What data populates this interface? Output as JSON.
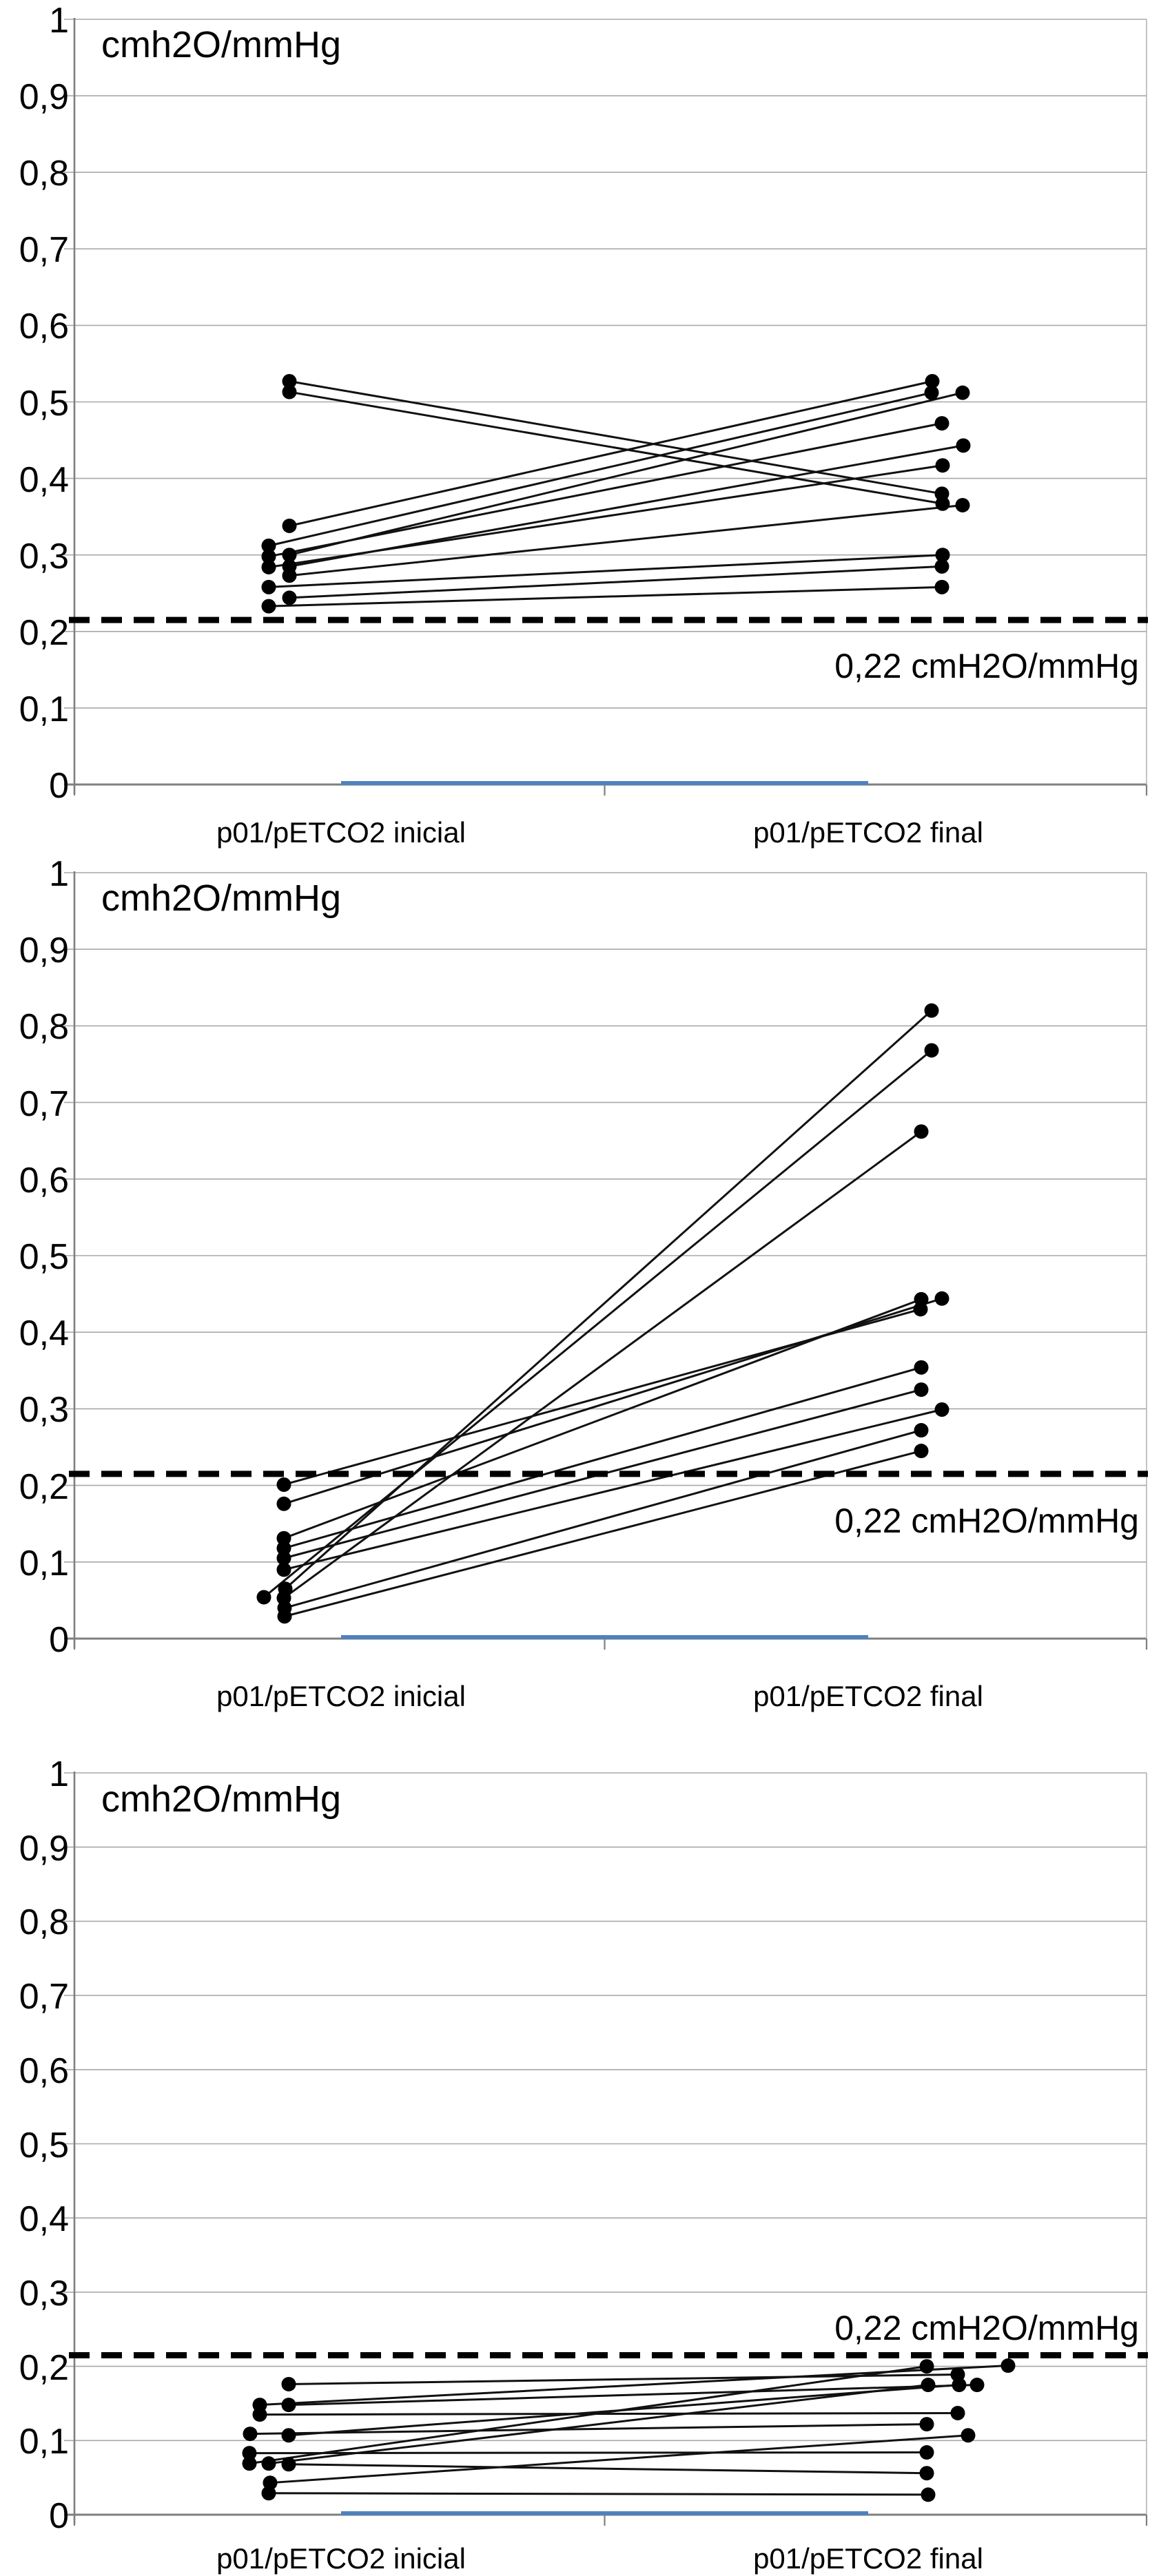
{
  "page": {
    "background": "#ffffff",
    "description": "Three stacked paired-point (slope) charts comparing p01/pETCO2 initial vs final, each with a dashed reference line at 0,22 cmH2O/mmHg"
  },
  "chart_data": [
    {
      "type": "line",
      "subtype": "paired-slope-chart",
      "title": "cmh2O/mmHg",
      "x_categories": [
        "p01/pETCO2 inicial",
        "p01/pETCO2 final"
      ],
      "ylim": [
        0,
        1
      ],
      "ytick_values": [
        0,
        0.1,
        0.2,
        0.3,
        0.4,
        0.5,
        0.6,
        0.7,
        0.8,
        0.9,
        1
      ],
      "ytick_labels": [
        "0",
        "0,1",
        "0,2",
        "0,3",
        "0,4",
        "0,5",
        "0,6",
        "0,7",
        "0,8",
        "0,9",
        "1"
      ],
      "grid": "horizontal",
      "legend": "none",
      "point_color": "#000000",
      "threshold": {
        "value": 0.215,
        "label": "0,22 cmH2O/mmHg",
        "label_position": "below-line-right",
        "style": "dashed-black"
      },
      "baseline_marker": {
        "value": 0,
        "color": "#4F81BD"
      },
      "pairs": [
        {
          "initial": 0.527,
          "final": 0.38,
          "dxi": 8,
          "dxf": 0
        },
        {
          "initial": 0.513,
          "final": 0.367,
          "dxi": 8,
          "dxf": 1
        },
        {
          "initial": 0.338,
          "final": 0.527,
          "dxi": 8,
          "dxf": -14
        },
        {
          "initial": 0.312,
          "final": 0.512,
          "dxi": -22,
          "dxf": -15
        },
        {
          "initial": 0.3,
          "final": 0.512,
          "dxi": 8,
          "dxf": 30
        },
        {
          "initial": 0.298,
          "final": 0.472,
          "dxi": -22,
          "dxf": 0
        },
        {
          "initial": 0.285,
          "final": 0.443,
          "dxi": 8,
          "dxf": 31
        },
        {
          "initial": 0.284,
          "final": 0.417,
          "dxi": -22,
          "dxf": 1
        },
        {
          "initial": 0.273,
          "final": 0.365,
          "dxi": 8,
          "dxf": 30
        },
        {
          "initial": 0.258,
          "final": 0.3,
          "dxi": -22,
          "dxf": 1
        },
        {
          "initial": 0.244,
          "final": 0.285,
          "dxi": 8,
          "dxf": 0
        },
        {
          "initial": 0.233,
          "final": 0.258,
          "dxi": -22,
          "dxf": 0
        }
      ]
    },
    {
      "type": "line",
      "subtype": "paired-slope-chart",
      "title": "cmh2O/mmHg",
      "x_categories": [
        "p01/pETCO2 inicial",
        "p01/pETCO2 final"
      ],
      "ylim": [
        0,
        1
      ],
      "ytick_values": [
        0,
        0.1,
        0.2,
        0.3,
        0.4,
        0.5,
        0.6,
        0.7,
        0.8,
        0.9,
        1
      ],
      "ytick_labels": [
        "0",
        "0,1",
        "0,2",
        "0,3",
        "0,4",
        "0,5",
        "0,6",
        "0,7",
        "0,8",
        "0,9",
        "1"
      ],
      "grid": "horizontal",
      "legend": "none",
      "point_color": "#000000",
      "threshold": {
        "value": 0.215,
        "label": "0,22 cmH2O/mmHg",
        "label_position": "below-line-right",
        "style": "dashed-black"
      },
      "baseline_marker": {
        "value": 0,
        "color": "#4F81BD"
      },
      "pairs": [
        {
          "initial": 0.201,
          "final": 0.43,
          "dxi": 0,
          "dxf": -31
        },
        {
          "initial": 0.176,
          "final": 0.444,
          "dxi": 0,
          "dxf": 0
        },
        {
          "initial": 0.131,
          "final": 0.443,
          "dxi": 0,
          "dxf": -30
        },
        {
          "initial": 0.118,
          "final": 0.354,
          "dxi": 0,
          "dxf": -30
        },
        {
          "initial": 0.105,
          "final": 0.325,
          "dxi": 0,
          "dxf": -30
        },
        {
          "initial": 0.09,
          "final": 0.299,
          "dxi": 0,
          "dxf": 0
        },
        {
          "initial": 0.065,
          "final": 0.82,
          "dxi": 2,
          "dxf": -15
        },
        {
          "initial": 0.054,
          "final": 0.768,
          "dxi": -29,
          "dxf": -15
        },
        {
          "initial": 0.053,
          "final": 0.662,
          "dxi": 0,
          "dxf": -30
        },
        {
          "initial": 0.04,
          "final": 0.272,
          "dxi": 1,
          "dxf": -30
        },
        {
          "initial": 0.029,
          "final": 0.245,
          "dxi": 1,
          "dxf": -30
        }
      ]
    },
    {
      "type": "line",
      "subtype": "paired-slope-chart",
      "title": "cmh2O/mmHg",
      "x_categories": [
        "p01/pETCO2 inicial",
        "p01/pETCO2 final"
      ],
      "ylim": [
        0,
        1
      ],
      "ytick_values": [
        0,
        0.1,
        0.2,
        0.3,
        0.4,
        0.5,
        0.6,
        0.7,
        0.8,
        0.9,
        1
      ],
      "ytick_labels": [
        "0",
        "0,1",
        "0,2",
        "0,3",
        "0,4",
        "0,5",
        "0,6",
        "0,7",
        "0,8",
        "0,9",
        "1"
      ],
      "grid": "horizontal",
      "legend": "none",
      "point_color": "#000000",
      "threshold": {
        "value": 0.215,
        "label": "0,22 cmH2O/mmHg",
        "label_position": "above-line-right",
        "style": "dashed-black"
      },
      "baseline_marker": {
        "value": 0,
        "color": "#4F81BD"
      },
      "pairs": [
        {
          "initial": 0.176,
          "final": 0.189,
          "dxi": 7,
          "dxf": 23
        },
        {
          "initial": 0.148,
          "final": 0.201,
          "dxi": -35,
          "dxf": 96
        },
        {
          "initial": 0.148,
          "final": 0.175,
          "dxi": 7,
          "dxf": 51
        },
        {
          "initial": 0.135,
          "final": 0.137,
          "dxi": -35,
          "dxf": 23
        },
        {
          "initial": 0.109,
          "final": 0.122,
          "dxi": -49,
          "dxf": -22
        },
        {
          "initial": 0.107,
          "final": 0.175,
          "dxi": 7,
          "dxf": 25
        },
        {
          "initial": 0.083,
          "final": 0.084,
          "dxi": -50,
          "dxf": -22
        },
        {
          "initial": 0.069,
          "final": 0.2,
          "dxi": -50,
          "dxf": -22
        },
        {
          "initial": 0.069,
          "final": 0.175,
          "dxi": -22,
          "dxf": -20
        },
        {
          "initial": 0.068,
          "final": 0.056,
          "dxi": 7,
          "dxf": -22
        },
        {
          "initial": 0.043,
          "final": 0.107,
          "dxi": -20,
          "dxf": 38
        },
        {
          "initial": 0.029,
          "final": 0.027,
          "dxi": -22,
          "dxf": -20
        }
      ]
    }
  ]
}
